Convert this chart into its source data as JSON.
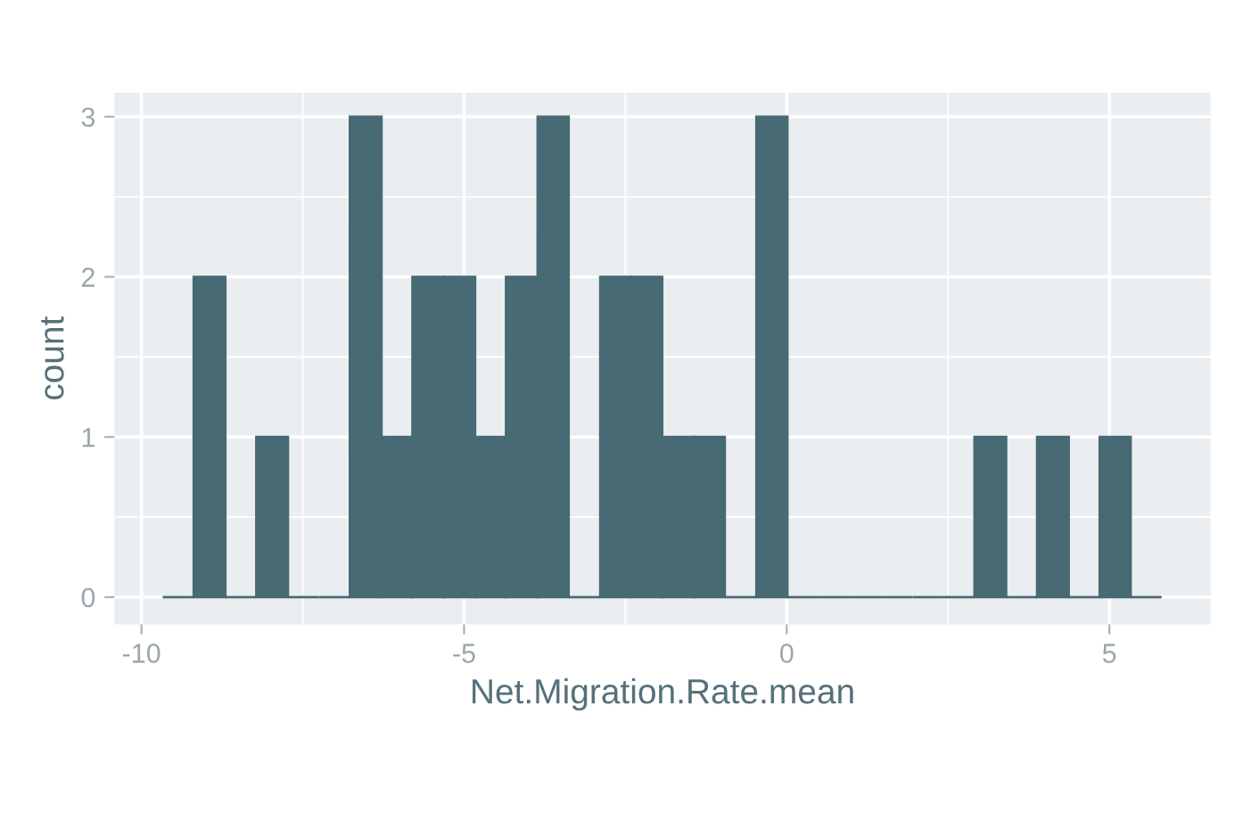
{
  "chart_data": {
    "type": "histogram",
    "xlabel": "Net.Migration.Rate.mean",
    "ylabel": "count",
    "bins": [
      -9.67,
      -9.19,
      -8.7,
      -8.22,
      -7.73,
      -7.25,
      -6.77,
      -6.28,
      -5.8,
      -5.31,
      -4.83,
      -4.35,
      -3.86,
      -3.38,
      -2.89,
      -2.41,
      -1.93,
      -1.44,
      -0.96,
      -0.47,
      0.01,
      0.49,
      0.98,
      1.46,
      1.95,
      2.43,
      2.91,
      3.4,
      3.88,
      4.37,
      4.85,
      5.33,
      5.81
    ],
    "values": [
      0,
      2,
      0,
      1,
      0,
      0,
      3,
      1,
      2,
      2,
      1,
      2,
      3,
      0,
      2,
      2,
      1,
      1,
      0,
      3,
      0,
      0,
      0,
      0,
      0,
      0,
      1,
      0,
      1,
      0,
      1,
      0
    ],
    "color": "#476a74",
    "xlim": [
      -10.42,
      6.57
    ],
    "ylim": [
      -0.17,
      3.15
    ],
    "xticks": [
      -10,
      -5,
      0,
      5
    ],
    "yticks": [
      0,
      1,
      2,
      3
    ],
    "grid": true
  }
}
